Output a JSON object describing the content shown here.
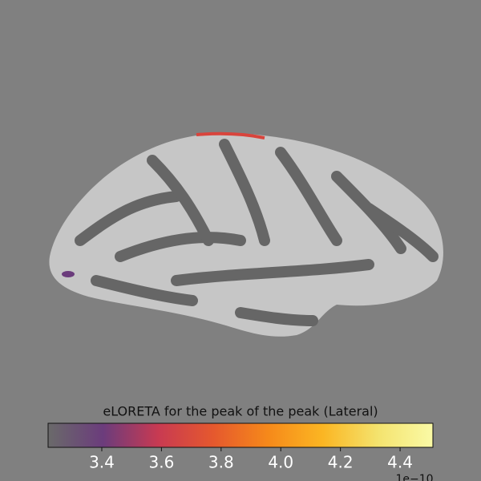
{
  "chart_data": {
    "type": "colorbar",
    "title": "eLORETA for the peak of the peak (Lateral)",
    "xlim": [
      3.22,
      4.51
    ],
    "xticks": [
      3.4,
      3.6,
      3.8,
      {
        "value": 4,
        "label": "4.0"
      },
      4.2,
      4.4
    ],
    "offset_label": "1e−10",
    "colormap": [
      "#6a6a6a",
      "#6b3c7c",
      "#c83a52",
      "#e5582e",
      "#f6891a",
      "#fbb623",
      "#f4e36e",
      "#fafaa6"
    ]
  }
}
